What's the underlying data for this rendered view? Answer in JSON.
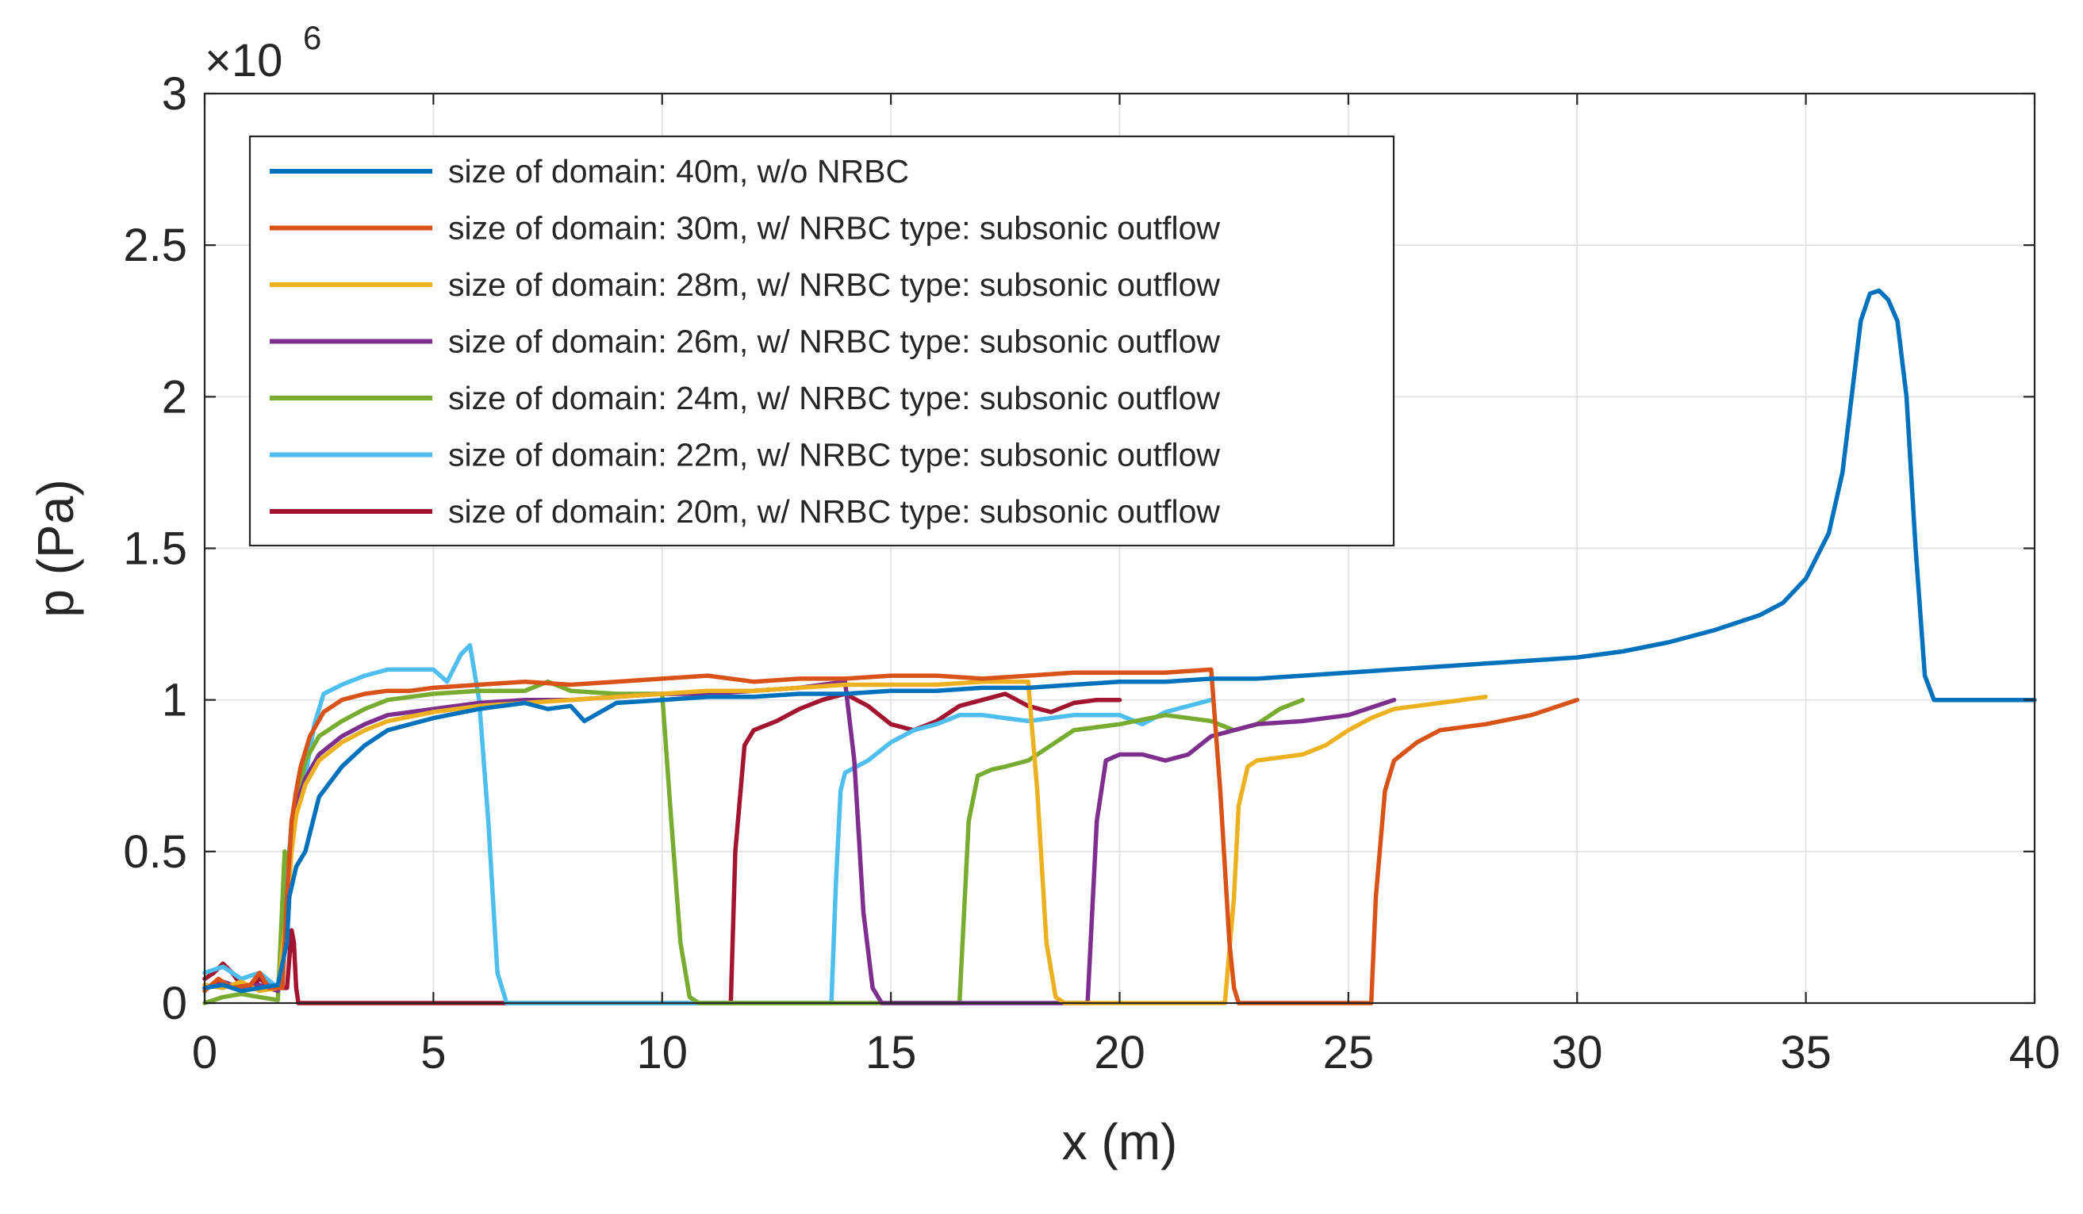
{
  "chart_data": {
    "type": "line",
    "title": "",
    "xlabel": "x (m)",
    "ylabel": "p (Pa)",
    "y_scale_label_base": "×10",
    "y_scale_label_exp": "6",
    "xlim": [
      0,
      40
    ],
    "ylim": [
      0,
      3
    ],
    "xticks": [
      0,
      5,
      10,
      15,
      20,
      25,
      30,
      35,
      40
    ],
    "yticks": [
      0,
      0.5,
      1,
      1.5,
      2,
      2.5,
      3
    ],
    "xtick_labels": [
      "0",
      "5",
      "10",
      "15",
      "20",
      "25",
      "30",
      "35",
      "40"
    ],
    "ytick_labels": [
      "0",
      "0.5",
      "1",
      "1.5",
      "2",
      "2.5",
      "3"
    ],
    "grid": true,
    "legend_position": "top-left",
    "series": [
      {
        "name": "size of domain: 40m, w/o NRBC",
        "color": "#0072BD",
        "x": [
          0,
          0.4,
          0.8,
          1.2,
          1.6,
          1.8,
          1.85,
          2.0,
          2.2,
          2.5,
          3.0,
          3.5,
          4.0,
          5.0,
          6.0,
          7.0,
          7.5,
          8.0,
          8.3,
          9.0,
          10.0,
          11.0,
          12.0,
          13.0,
          14.0,
          15.0,
          16.0,
          17.0,
          18.0,
          19.0,
          20.0,
          21.0,
          22.0,
          23.0,
          24.0,
          25.0,
          26.0,
          27.0,
          28.0,
          29.0,
          30.0,
          31.0,
          32.0,
          33.0,
          34.0,
          34.5,
          35.0,
          35.5,
          35.8,
          36.0,
          36.2,
          36.4,
          36.6,
          36.8,
          37.0,
          37.2,
          37.4,
          37.6,
          37.8,
          38.0,
          39.0,
          40.0
        ],
        "y": [
          0.05,
          0.06,
          0.04,
          0.05,
          0.06,
          0.2,
          0.35,
          0.45,
          0.5,
          0.68,
          0.78,
          0.85,
          0.9,
          0.94,
          0.97,
          0.99,
          0.97,
          0.98,
          0.93,
          0.99,
          1.0,
          1.01,
          1.01,
          1.02,
          1.02,
          1.03,
          1.03,
          1.04,
          1.04,
          1.05,
          1.06,
          1.06,
          1.07,
          1.07,
          1.08,
          1.09,
          1.1,
          1.11,
          1.12,
          1.13,
          1.14,
          1.16,
          1.19,
          1.23,
          1.28,
          1.32,
          1.4,
          1.55,
          1.75,
          2.0,
          2.25,
          2.34,
          2.35,
          2.32,
          2.25,
          2.0,
          1.5,
          1.08,
          1.0,
          1.0,
          1.0,
          1.0
        ]
      },
      {
        "name": "size of domain: 30m, w/ NRBC type: subsonic outflow",
        "color": "#D95319",
        "x": [
          0,
          0.3,
          0.6,
          1.0,
          1.2,
          1.4,
          1.7,
          1.8,
          1.9,
          2.0,
          2.1,
          2.3,
          2.6,
          3.0,
          3.5,
          4.0,
          4.5,
          5.0,
          6.0,
          7.0,
          8.0,
          9.0,
          10.0,
          11.0,
          12.0,
          13.0,
          14.0,
          15.0,
          16.0,
          17.0,
          18.0,
          19.0,
          20.0,
          21.0,
          22.0,
          22.2,
          22.4,
          22.5,
          22.6,
          22.8,
          23.0,
          24.0,
          25.0,
          25.5,
          25.6,
          25.8,
          26.0,
          26.5,
          27.0,
          28.0,
          29.0,
          30.0
        ],
        "y": [
          0.04,
          0.08,
          0.05,
          0.06,
          0.1,
          0.05,
          0.05,
          0.35,
          0.6,
          0.7,
          0.78,
          0.88,
          0.96,
          1.0,
          1.02,
          1.03,
          1.03,
          1.04,
          1.05,
          1.06,
          1.05,
          1.06,
          1.07,
          1.08,
          1.06,
          1.07,
          1.07,
          1.08,
          1.08,
          1.07,
          1.08,
          1.09,
          1.09,
          1.09,
          1.1,
          0.7,
          0.2,
          0.05,
          0.0,
          0.0,
          0.0,
          0.0,
          0.0,
          0.0,
          0.35,
          0.7,
          0.8,
          0.86,
          0.9,
          0.92,
          0.95,
          1.0
        ]
      },
      {
        "name": "size of domain: 28m, w/ NRBC type: subsonic outflow",
        "color": "#EDB120",
        "x": [
          0,
          0.4,
          0.8,
          1.2,
          1.6,
          1.8,
          1.9,
          2.0,
          2.2,
          2.5,
          3.0,
          3.5,
          4.0,
          5.0,
          6.0,
          7.0,
          8.0,
          9.0,
          10.0,
          11.0,
          12.0,
          13.0,
          14.0,
          15.0,
          16.0,
          17.0,
          18.0,
          18.2,
          18.4,
          18.6,
          18.8,
          19.0,
          20.0,
          21.0,
          22.0,
          22.3,
          22.5,
          22.6,
          22.8,
          23.0,
          23.5,
          24.0,
          24.5,
          25.0,
          25.5,
          26.0,
          27.0,
          28.0
        ],
        "y": [
          0.06,
          0.05,
          0.07,
          0.04,
          0.05,
          0.3,
          0.5,
          0.62,
          0.72,
          0.8,
          0.86,
          0.9,
          0.93,
          0.96,
          0.98,
          0.99,
          1.0,
          1.01,
          1.02,
          1.03,
          1.03,
          1.04,
          1.05,
          1.05,
          1.05,
          1.06,
          1.06,
          0.7,
          0.2,
          0.02,
          0.0,
          0.0,
          0.0,
          0.0,
          0.0,
          0.0,
          0.35,
          0.65,
          0.78,
          0.8,
          0.81,
          0.82,
          0.85,
          0.9,
          0.94,
          0.97,
          0.99,
          1.01
        ]
      },
      {
        "name": "size of domain: 26m, w/ NRBC type: subsonic outflow",
        "color": "#7E2F8E",
        "x": [
          0,
          0.4,
          0.8,
          1.2,
          1.6,
          1.8,
          1.9,
          2.0,
          2.2,
          2.5,
          3.0,
          3.5,
          4.0,
          5.0,
          6.0,
          7.0,
          8.0,
          9.0,
          10.0,
          11.0,
          12.0,
          13.0,
          14.0,
          14.2,
          14.4,
          14.6,
          14.8,
          15.0,
          16.0,
          17.0,
          18.0,
          19.0,
          19.3,
          19.5,
          19.7,
          20.0,
          20.5,
          21.0,
          21.5,
          22.0,
          22.5,
          23.0,
          24.0,
          25.0,
          26.0
        ],
        "y": [
          0.05,
          0.07,
          0.05,
          0.06,
          0.04,
          0.3,
          0.55,
          0.65,
          0.74,
          0.82,
          0.88,
          0.92,
          0.95,
          0.97,
          0.99,
          1.0,
          1.0,
          1.01,
          1.02,
          1.02,
          1.03,
          1.04,
          1.06,
          0.8,
          0.3,
          0.05,
          0.0,
          0.0,
          0.0,
          0.0,
          0.0,
          0.0,
          0.0,
          0.6,
          0.8,
          0.82,
          0.82,
          0.8,
          0.82,
          0.88,
          0.9,
          0.92,
          0.93,
          0.95,
          1.0
        ]
      },
      {
        "name": "size of domain: 24m, w/ NRBC type: subsonic outflow",
        "color": "#77AC30",
        "x": [
          0,
          0.4,
          0.8,
          1.2,
          1.6,
          1.75,
          1.8,
          1.9,
          2.0,
          2.2,
          2.5,
          3.0,
          3.5,
          4.0,
          5.0,
          6.0,
          7.0,
          7.5,
          8.0,
          9.0,
          10.0,
          10.2,
          10.4,
          10.6,
          10.8,
          11.0,
          12.0,
          13.0,
          14.0,
          15.0,
          16.0,
          16.5,
          16.7,
          16.9,
          17.2,
          17.5,
          18.0,
          18.5,
          19.0,
          20.0,
          21.0,
          22.0,
          22.5,
          23.0,
          23.5,
          24.0
        ],
        "y": [
          0.0,
          0.02,
          0.03,
          0.02,
          0.01,
          0.5,
          0.45,
          0.55,
          0.65,
          0.8,
          0.88,
          0.93,
          0.97,
          1.0,
          1.02,
          1.03,
          1.03,
          1.06,
          1.03,
          1.02,
          1.02,
          0.6,
          0.2,
          0.02,
          0.0,
          0.0,
          0.0,
          0.0,
          0.0,
          0.0,
          0.0,
          0.0,
          0.6,
          0.75,
          0.77,
          0.78,
          0.8,
          0.85,
          0.9,
          0.92,
          0.95,
          0.93,
          0.9,
          0.92,
          0.97,
          1.0
        ]
      },
      {
        "name": "size of domain: 22m, w/ NRBC type: subsonic outflow",
        "color": "#4DBEEE",
        "x": [
          0,
          0.4,
          0.8,
          1.2,
          1.6,
          1.8,
          1.9,
          2.0,
          2.2,
          2.4,
          2.6,
          3.0,
          3.5,
          4.0,
          5.0,
          5.3,
          5.6,
          5.8,
          6.0,
          6.2,
          6.4,
          6.6,
          7.0,
          8.0,
          9.0,
          10.0,
          11.0,
          12.0,
          13.0,
          13.7,
          13.8,
          13.9,
          14.0,
          14.5,
          15.0,
          15.5,
          16.0,
          16.5,
          17.0,
          18.0,
          19.0,
          20.0,
          20.5,
          21.0,
          22.0
        ],
        "y": [
          0.1,
          0.12,
          0.08,
          0.1,
          0.05,
          0.4,
          0.6,
          0.68,
          0.75,
          0.92,
          1.02,
          1.05,
          1.08,
          1.1,
          1.1,
          1.06,
          1.15,
          1.18,
          1.0,
          0.6,
          0.1,
          0.0,
          0.0,
          0.0,
          0.0,
          0.0,
          0.0,
          0.0,
          0.0,
          0.0,
          0.4,
          0.7,
          0.76,
          0.8,
          0.86,
          0.9,
          0.92,
          0.95,
          0.95,
          0.93,
          0.95,
          0.95,
          0.92,
          0.96,
          1.0
        ]
      },
      {
        "name": "size of domain: 20m, w/ NRBC type: subsonic outflow",
        "color": "#A2142F",
        "x": [
          0,
          0.2,
          0.4,
          0.6,
          0.8,
          1.0,
          1.2,
          1.4,
          1.6,
          1.8,
          1.9,
          1.95,
          2.0,
          2.05,
          3.0,
          5.0,
          7.0,
          9.0,
          11.0,
          11.5,
          11.6,
          11.8,
          12.0,
          12.5,
          13.0,
          13.5,
          14.0,
          14.5,
          15.0,
          15.5,
          16.0,
          16.5,
          17.0,
          17.5,
          18.0,
          18.5,
          19.0,
          19.5,
          20.0
        ],
        "y": [
          0.08,
          0.1,
          0.13,
          0.1,
          0.06,
          0.05,
          0.08,
          0.06,
          0.05,
          0.05,
          0.24,
          0.2,
          0.05,
          0.0,
          0.0,
          0.0,
          0.0,
          0.0,
          0.0,
          0.0,
          0.5,
          0.85,
          0.9,
          0.93,
          0.97,
          1.0,
          1.02,
          0.98,
          0.92,
          0.9,
          0.93,
          0.98,
          1.0,
          1.02,
          0.98,
          0.96,
          0.99,
          1.0,
          1.0
        ]
      }
    ]
  }
}
